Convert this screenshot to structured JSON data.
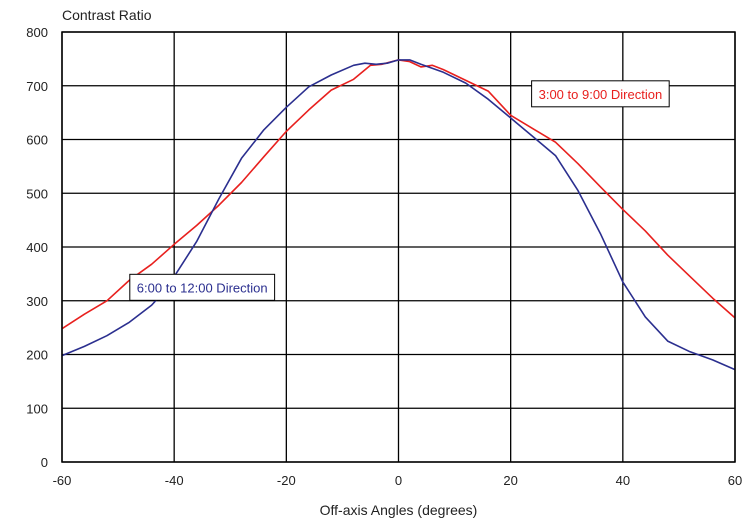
{
  "chart_data": {
    "type": "line",
    "ylabel": "Contrast Ratio",
    "xlabel": "Off-axis Angles (degrees)",
    "xlim": [
      -60,
      60
    ],
    "ylim": [
      0,
      800
    ],
    "xticks": [
      -60,
      -40,
      -20,
      0,
      20,
      40,
      60
    ],
    "yticks": [
      0,
      100,
      200,
      300,
      400,
      500,
      600,
      700,
      800
    ],
    "grid": true,
    "colors": {
      "red": "#e8201e",
      "blue": "#2b2f8f",
      "grid": "#000000"
    },
    "series": [
      {
        "name": "3:00 to 9:00 Direction",
        "color": "#e8201e",
        "x": [
          -60,
          -56,
          -52,
          -48,
          -44,
          -40,
          -36,
          -32,
          -28,
          -24,
          -20,
          -16,
          -12,
          -8,
          -5,
          -3,
          0,
          2,
          4,
          6,
          8,
          12,
          16,
          20,
          24,
          28,
          32,
          36,
          40,
          44,
          48,
          52,
          56,
          60
        ],
        "y": [
          248,
          275,
          300,
          338,
          368,
          405,
          440,
          478,
          520,
          568,
          615,
          655,
          692,
          712,
          738,
          740,
          748,
          745,
          735,
          738,
          730,
          710,
          690,
          645,
          620,
          595,
          555,
          512,
          470,
          430,
          385,
          345,
          305,
          268
        ]
      },
      {
        "name": "6:00 to 12:00 Direction",
        "color": "#2b2f8f",
        "x": [
          -60,
          -56,
          -52,
          -48,
          -44,
          -42,
          -40,
          -36,
          -32,
          -28,
          -24,
          -20,
          -16,
          -12,
          -8,
          -6,
          -4,
          -2,
          0,
          2,
          4,
          8,
          12,
          16,
          20,
          24,
          28,
          32,
          36,
          40,
          44,
          48,
          52,
          56,
          60
        ],
        "y": [
          198,
          215,
          235,
          260,
          292,
          315,
          345,
          410,
          490,
          565,
          618,
          660,
          698,
          720,
          738,
          742,
          740,
          742,
          748,
          748,
          740,
          725,
          705,
          675,
          640,
          605,
          570,
          505,
          425,
          335,
          270,
          225,
          205,
          190,
          172
        ]
      }
    ],
    "annotations": [
      {
        "text": "3:00 to 9:00 Direction",
        "x": 36,
        "y": 685,
        "color": "#e8201e"
      },
      {
        "text": "6:00 to 12:00 Direction",
        "x": -35,
        "y": 325,
        "color": "#2b2f8f"
      }
    ]
  }
}
